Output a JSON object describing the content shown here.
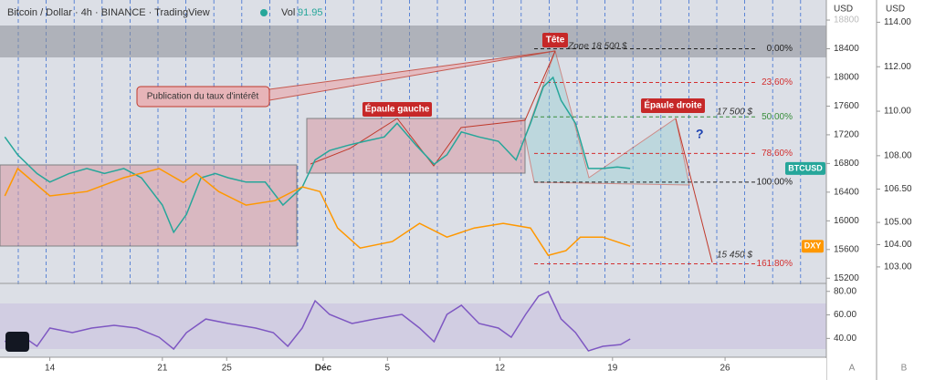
{
  "header": {
    "symbol": "Bitcoin / Dollar · 4h · BINANCE · TradingView",
    "vol_label": "Vol",
    "vol_value": "91.95"
  },
  "chart_data": [
    {
      "type": "line",
      "xlim": [
        10.9,
        62.3
      ],
      "ylim": [
        15140,
        19080
      ],
      "yticks": [
        15200,
        15600,
        16000,
        16400,
        16800,
        17200,
        17600,
        18000,
        18400,
        18800
      ],
      "y_unit": "USD",
      "y2lim": [
        102.3,
        115
      ],
      "y2ticks": [
        {
          "value": 103,
          "label": "103.00"
        },
        {
          "value": 104,
          "label": "104.00"
        },
        {
          "value": 105,
          "label": "105.00"
        },
        {
          "value": 106.5,
          "label": "106.50"
        },
        {
          "value": 108,
          "label": "108.00"
        },
        {
          "value": 110,
          "label": "110.00"
        },
        {
          "value": 112,
          "label": "112.00"
        },
        {
          "value": 114,
          "label": "114.00"
        }
      ],
      "y2_unit": "USD",
      "series": [
        {
          "name": "BTCUSD",
          "color": "#26a69a",
          "x": [
            11.2,
            12.0,
            13.2,
            14.0,
            15.2,
            16.3,
            17.4,
            18.6,
            19.7,
            21.0,
            21.7,
            22.5,
            23.4,
            24.3,
            25.1,
            26.2,
            27.4,
            28.5,
            29.7,
            30.5,
            31.4,
            32.5,
            33.6,
            34.8,
            35.6,
            36.8,
            37.9,
            38.7,
            39.6,
            40.7,
            41.9,
            43.0,
            43.9,
            44.7,
            45.3,
            45.8,
            46.7,
            47.5,
            48.4,
            49.3,
            50.1
          ],
          "values": [
            17170,
            16920,
            16660,
            16540,
            16660,
            16730,
            16660,
            16730,
            16600,
            16220,
            15840,
            16090,
            16600,
            16660,
            16600,
            16540,
            16540,
            16220,
            16470,
            16850,
            16980,
            17050,
            17110,
            17170,
            17360,
            17050,
            16790,
            16920,
            17240,
            17170,
            17110,
            16850,
            17360,
            17870,
            18000,
            17680,
            17360,
            16730,
            16730,
            16750,
            16730
          ]
        },
        {
          "name": "DXY",
          "color": "#ff9800",
          "axis": "y2",
          "x": [
            11.2,
            12.0,
            14.0,
            16.3,
            18.6,
            20.8,
            22.3,
            23.1,
            24.5,
            26.2,
            28.0,
            29.7,
            30.8,
            31.9,
            33.3,
            35.3,
            37.0,
            38.7,
            40.4,
            42.2,
            43.9,
            45.0,
            46.1,
            47.0,
            48.4,
            50.1
          ],
          "values": [
            106.19,
            107.42,
            106.19,
            106.39,
            107.01,
            107.42,
            106.8,
            107.21,
            106.39,
            105.78,
            105.98,
            106.6,
            106.39,
            104.75,
            103.85,
            104.14,
            104.96,
            104.34,
            104.75,
            104.96,
            104.75,
            103.52,
            103.73,
            104.34,
            104.34,
            103.93
          ]
        }
      ],
      "fib_levels": [
        {
          "label": "0.00%",
          "price": 18400,
          "color": "#222"
        },
        {
          "label": "23.60%",
          "price": 17930,
          "color": "#d32f2f"
        },
        {
          "label": "50.00%",
          "price": 17450,
          "color": "#388e3c"
        },
        {
          "label": "78.60%",
          "price": 16940,
          "color": "#d32f2f"
        },
        {
          "label": "100.00%",
          "price": 16540,
          "color": "#222"
        },
        {
          "label": "161.80%",
          "price": 15400,
          "color": "#d32f2f"
        }
      ],
      "annotations": [
        "Tête",
        "Zone 18 500 $",
        "Épaule gauche",
        "Épaule droite",
        "17 500 $",
        "?",
        "15 450 $",
        "Publication du taux d'intérêt"
      ]
    },
    {
      "type": "line",
      "xlim": [
        10.9,
        62.3
      ],
      "xticks": [
        {
          "value": 14,
          "label": "14"
        },
        {
          "value": 21,
          "label": "21"
        },
        {
          "value": 25,
          "label": "25"
        },
        {
          "value": 31,
          "label": "Déc"
        },
        {
          "value": 35,
          "label": "5"
        },
        {
          "value": 42,
          "label": "12"
        },
        {
          "value": 49,
          "label": "19"
        },
        {
          "value": 56,
          "label": "26"
        }
      ],
      "ylim": [
        24,
        86
      ],
      "yticks": [
        {
          "value": 40,
          "label": "40.00"
        },
        {
          "value": 60,
          "label": "60.00"
        },
        {
          "value": 80,
          "label": "80.00"
        }
      ],
      "series": [
        {
          "color": "#7e57c2",
          "x": [
            11.2,
            12.0,
            13.2,
            14.0,
            15.4,
            16.6,
            18.0,
            19.4,
            20.8,
            21.7,
            22.5,
            23.7,
            25.1,
            26.8,
            27.9,
            28.8,
            29.7,
            30.5,
            31.4,
            32.8,
            34.2,
            35.9,
            37.0,
            37.9,
            38.7,
            39.6,
            40.7,
            41.9,
            42.7,
            43.6,
            44.4,
            45.0,
            45.8,
            46.7,
            47.5,
            48.4,
            49.5,
            50.1
          ],
          "values": [
            37.2,
            44.9,
            33.3,
            48.8,
            44.9,
            48.8,
            51.1,
            48.8,
            41.0,
            31.0,
            44.9,
            56.5,
            52.7,
            48.8,
            44.9,
            33.3,
            48.8,
            72.0,
            60.4,
            52.7,
            56.5,
            60.4,
            48.8,
            37.2,
            60.4,
            68.2,
            52.7,
            48.8,
            41.0,
            60.4,
            75.9,
            79.8,
            56.5,
            44.9,
            29.4,
            33.3,
            34.8,
            39.5
          ]
        }
      ]
    },
    {
      "type": "axis-labels",
      "labels": [
        "A",
        "B"
      ]
    }
  ]
}
